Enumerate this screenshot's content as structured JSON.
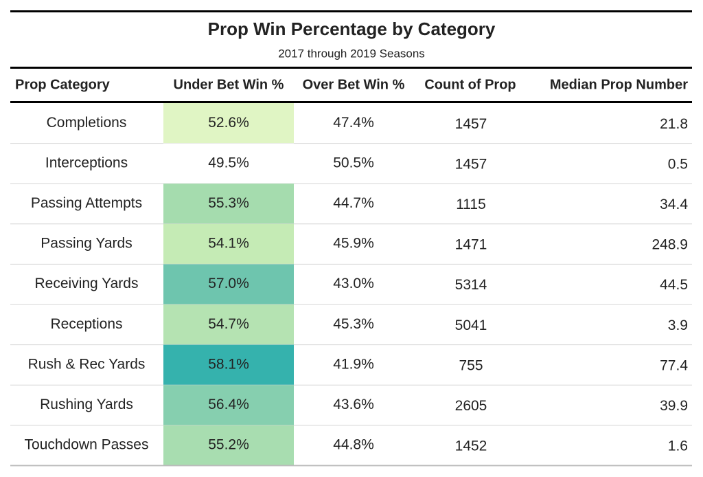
{
  "title": "Prop Win Percentage by Category",
  "subtitle": "2017 through 2019 Seasons",
  "table": {
    "headers": [
      "Prop Category",
      "Under Bet Win %",
      "Over Bet Win %",
      "Count of Prop",
      "Median Prop Number"
    ],
    "rows": [
      [
        "Completions",
        "52.6%",
        "47.4%",
        "1457",
        "21.8"
      ],
      [
        "Interceptions",
        "49.5%",
        "50.5%",
        "1457",
        "0.5"
      ],
      [
        "Passing Attempts",
        "55.3%",
        "44.7%",
        "1115",
        "34.4"
      ],
      [
        "Passing Yards",
        "54.1%",
        "45.9%",
        "1471",
        "248.9"
      ],
      [
        "Receiving Yards",
        "57.0%",
        "43.0%",
        "5314",
        "44.5"
      ],
      [
        "Receptions",
        "54.7%",
        "45.3%",
        "5041",
        "3.9"
      ],
      [
        "Rush & Rec Yards",
        "58.1%",
        "41.9%",
        "755",
        "77.4"
      ],
      [
        "Rushing Yards",
        "56.4%",
        "43.6%",
        "2605",
        "39.9"
      ],
      [
        "Touchdown Passes",
        "55.2%",
        "44.8%",
        "1452",
        "1.6"
      ]
    ],
    "under_colors": [
      "#e0f5c4",
      "#ffffff",
      "#a5dcae",
      "#c5ebb5",
      "#6ec5ae",
      "#b5e3b2",
      "#35b2ad",
      "#86cfaf",
      "#a8ddb0"
    ]
  }
}
